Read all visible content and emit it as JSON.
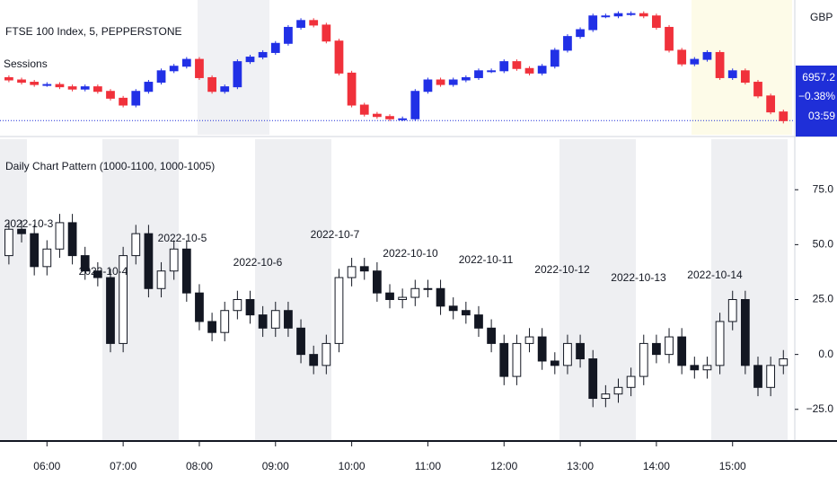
{
  "chart_data": [
    {
      "type": "candlestick",
      "title": "FTSE 100 Index, 5, PEPPERSTONE",
      "subtitle": "Sessions",
      "currency": "GBP",
      "last_price": 6957.2,
      "change_label": "−0.38%",
      "countdown": "03:59",
      "up_color": "#2130e6",
      "down_color": "#f0313b",
      "price_line_color": "#1f2fd8",
      "xlim": [
        "05:23",
        "15:49"
      ],
      "ylim": [
        6953,
        7008
      ],
      "x": [
        "05:30",
        "05:40",
        "05:50",
        "06:00",
        "06:10",
        "06:20",
        "06:30",
        "06:40",
        "06:50",
        "07:00",
        "07:10",
        "07:20",
        "07:30",
        "07:40",
        "07:50",
        "08:00",
        "08:10",
        "08:20",
        "08:30",
        "08:40",
        "08:50",
        "09:00",
        "09:10",
        "09:20",
        "09:30",
        "09:40",
        "09:50",
        "10:00",
        "10:10",
        "10:20",
        "10:30",
        "10:40",
        "10:50",
        "11:00",
        "11:10",
        "11:20",
        "11:30",
        "11:40",
        "11:50",
        "12:00",
        "12:10",
        "12:20",
        "12:30",
        "12:40",
        "12:50",
        "13:00",
        "13:10",
        "13:20",
        "13:30",
        "13:40",
        "13:50",
        "14:00",
        "14:10",
        "14:20",
        "14:30",
        "14:40",
        "14:50",
        "15:00",
        "15:10",
        "15:20",
        "15:30",
        "15:40"
      ],
      "open": [
        6976,
        6975,
        6974,
        6973,
        6973,
        6972,
        6971,
        6972,
        6970,
        6967,
        6964,
        6970,
        6974,
        6979,
        6981,
        6984,
        6976,
        6970,
        6972,
        6983,
        6985,
        6987,
        6991,
        6998,
        7001,
        6999,
        6992,
        6978,
        6964,
        6960,
        6959,
        6958,
        6958,
        6970,
        6975,
        6973,
        6975,
        6976,
        6979,
        6979,
        6983,
        6980,
        6978,
        6981,
        6988,
        6994,
        6997,
        7003,
        7003,
        7004,
        7004,
        7003,
        6998,
        6988,
        6982,
        6984,
        6987,
        6976,
        6979,
        6974,
        6968,
        6961
      ],
      "high": [
        6977,
        6976,
        6975,
        6974,
        6974,
        6973,
        6973,
        6973,
        6971,
        6968,
        6971,
        6975,
        6980,
        6982,
        6985,
        6985,
        6977,
        6973,
        6984,
        6986,
        6988,
        6992,
        6999,
        7002,
        7002,
        7000,
        6993,
        6979,
        6965,
        6961,
        6960,
        6959,
        6971,
        6976,
        6976,
        6976,
        6977,
        6980,
        6980,
        6984,
        6984,
        6981,
        6982,
        6989,
        6995,
        6998,
        7004,
        7004,
        7005,
        7005,
        7005,
        7004,
        6999,
        6989,
        6985,
        6988,
        6988,
        6980,
        6980,
        6975,
        6969,
        6962
      ],
      "low": [
        6974,
        6973,
        6972,
        6972,
        6971,
        6970,
        6970,
        6969,
        6966,
        6963,
        6963,
        6969,
        6973,
        6978,
        6980,
        6975,
        6969,
        6969,
        6971,
        6982,
        6984,
        6986,
        6990,
        6997,
        6998,
        6991,
        6977,
        6963,
        6959,
        6958,
        6957,
        6957,
        6957,
        6969,
        6972,
        6972,
        6974,
        6975,
        6978,
        6978,
        6979,
        6977,
        6977,
        6980,
        6987,
        6993,
        6996,
        7002,
        7002,
        7003,
        7002,
        6997,
        6987,
        6981,
        6981,
        6983,
        6975,
        6975,
        6973,
        6967,
        6960,
        6956
      ],
      "close": [
        6975,
        6974,
        6973,
        6973,
        6972,
        6971,
        6972,
        6970,
        6967,
        6964,
        6970,
        6974,
        6979,
        6981,
        6984,
        6976,
        6970,
        6972,
        6983,
        6985,
        6987,
        6991,
        6998,
        7001,
        6999,
        6992,
        6978,
        6964,
        6960,
        6959,
        6958,
        6958,
        6970,
        6975,
        6973,
        6975,
        6976,
        6979,
        6979,
        6983,
        6980,
        6978,
        6981,
        6988,
        6994,
        6997,
        7003,
        7003,
        7004,
        7004,
        7003,
        6998,
        6988,
        6982,
        6984,
        6987,
        6976,
        6979,
        6974,
        6968,
        6961,
        6957.2
      ]
    },
    {
      "type": "candlestick",
      "title": "Daily Chart Pattern (1000-1100, 1000-1005)",
      "annotations": [
        "2022-10-3",
        "2022-10-4",
        "2022-10-5",
        "2022-10-6",
        "2022-10-7",
        "2022-10-10",
        "2022-10-11",
        "2022-10-12",
        "2022-10-13",
        "2022-10-14"
      ],
      "up_color": "#ffffff",
      "down_color": "#131722",
      "border_color": "#131722",
      "xlim": [
        "05:23",
        "15:49"
      ],
      "xticks": [
        "06:00",
        "07:00",
        "08:00",
        "09:00",
        "10:00",
        "11:00",
        "12:00",
        "13:00",
        "14:00",
        "15:00"
      ],
      "ylim": [
        -39,
        98
      ],
      "yticks": [
        {
          "value": 75,
          "label": "75.0"
        },
        {
          "value": 50,
          "label": "50.0"
        },
        {
          "value": 25,
          "label": "25.0"
        },
        {
          "value": 0,
          "label": "0.0"
        },
        {
          "value": -25,
          "label": "−25.0"
        }
      ],
      "x": [
        "05:30",
        "05:40",
        "05:50",
        "06:00",
        "06:10",
        "06:20",
        "06:30",
        "06:40",
        "06:50",
        "07:00",
        "07:10",
        "07:20",
        "07:30",
        "07:40",
        "07:50",
        "08:00",
        "08:10",
        "08:20",
        "08:30",
        "08:40",
        "08:50",
        "09:00",
        "09:10",
        "09:20",
        "09:30",
        "09:40",
        "09:50",
        "10:00",
        "10:10",
        "10:20",
        "10:30",
        "10:40",
        "10:50",
        "11:00",
        "11:10",
        "11:20",
        "11:30",
        "11:40",
        "11:50",
        "12:00",
        "12:10",
        "12:20",
        "12:30",
        "12:40",
        "12:50",
        "13:00",
        "13:10",
        "13:20",
        "13:30",
        "13:40",
        "13:50",
        "14:00",
        "14:10",
        "14:20",
        "14:30",
        "14:40",
        "14:50",
        "15:00",
        "15:10",
        "15:20",
        "15:30",
        "15:40"
      ],
      "open": [
        45,
        57,
        55,
        40,
        48,
        60,
        45,
        38,
        35,
        5,
        45,
        55,
        30,
        38,
        48,
        28,
        15,
        10,
        20,
        25,
        18,
        12,
        20,
        12,
        0,
        -5,
        5,
        35,
        40,
        38,
        28,
        25,
        26,
        30,
        30,
        22,
        20,
        18,
        12,
        5,
        -10,
        5,
        8,
        -3,
        -5,
        5,
        -2,
        -20,
        -18,
        -15,
        -10,
        5,
        0,
        8,
        -5,
        -7,
        -5,
        15,
        25,
        -5,
        -15,
        -5
      ],
      "high": [
        61,
        61,
        59,
        52,
        64,
        64,
        49,
        42,
        39,
        49,
        59,
        59,
        42,
        52,
        52,
        32,
        19,
        24,
        29,
        29,
        22,
        24,
        24,
        16,
        4,
        9,
        39,
        44,
        44,
        42,
        32,
        30,
        34,
        34,
        34,
        26,
        24,
        22,
        16,
        9,
        9,
        12,
        12,
        1,
        9,
        9,
        2,
        -14,
        -11,
        -6,
        9,
        9,
        12,
        12,
        -1,
        -1,
        19,
        29,
        29,
        -1,
        -1,
        2
      ],
      "low": [
        41,
        51,
        36,
        36,
        44,
        41,
        34,
        31,
        1,
        1,
        41,
        26,
        26,
        34,
        24,
        11,
        6,
        6,
        16,
        14,
        8,
        8,
        8,
        -4,
        -9,
        -9,
        1,
        31,
        34,
        24,
        21,
        21,
        22,
        26,
        18,
        16,
        14,
        8,
        1,
        -14,
        -14,
        1,
        -7,
        -9,
        -9,
        -6,
        -24,
        -24,
        -22,
        -19,
        -14,
        -4,
        -4,
        -9,
        -11,
        -11,
        -9,
        11,
        -9,
        -19,
        -19,
        -9
      ],
      "close": [
        57,
        55,
        40,
        48,
        60,
        45,
        38,
        35,
        5,
        45,
        55,
        30,
        38,
        48,
        28,
        15,
        10,
        20,
        25,
        18,
        12,
        20,
        12,
        0,
        -5,
        5,
        35,
        40,
        38,
        28,
        25,
        26,
        30,
        30,
        22,
        20,
        18,
        12,
        5,
        -10,
        5,
        8,
        -3,
        -5,
        5,
        -2,
        -20,
        -18,
        -15,
        -10,
        5,
        0,
        8,
        -5,
        -7,
        -5,
        15,
        25,
        -5,
        -15,
        -5,
        -2
      ]
    }
  ]
}
